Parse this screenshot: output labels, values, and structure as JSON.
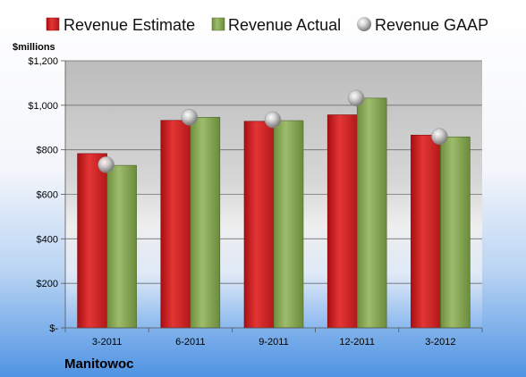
{
  "company": "Manitowoc",
  "chart_data": {
    "type": "bar",
    "ylabel": "$millions",
    "categories": [
      "3-2011",
      "6-2011",
      "9-2011",
      "12-2011",
      "3-2012"
    ],
    "series": [
      {
        "name": "Revenue Estimate",
        "kind": "bar",
        "color": "#d92b2b",
        "values": [
          783,
          932,
          928,
          957,
          866
        ]
      },
      {
        "name": "Revenue Actual",
        "kind": "bar",
        "color": "#8aad5a",
        "values": [
          730,
          946,
          931,
          1032,
          858
        ]
      },
      {
        "name": "Revenue GAAP",
        "kind": "marker",
        "color": "#b8b8b8",
        "values": [
          733,
          946,
          935,
          1032,
          860
        ]
      }
    ],
    "ylim": [
      0,
      1200
    ],
    "yticks": [
      {
        "value": 0,
        "label": "$-"
      },
      {
        "value": 200,
        "label": "$200"
      },
      {
        "value": 400,
        "label": "$400"
      },
      {
        "value": 600,
        "label": "$600"
      },
      {
        "value": 800,
        "label": "$800"
      },
      {
        "value": 1000,
        "label": "$1,000"
      },
      {
        "value": 1200,
        "label": "$1,200"
      }
    ],
    "grid": true,
    "legend_position": "top"
  }
}
